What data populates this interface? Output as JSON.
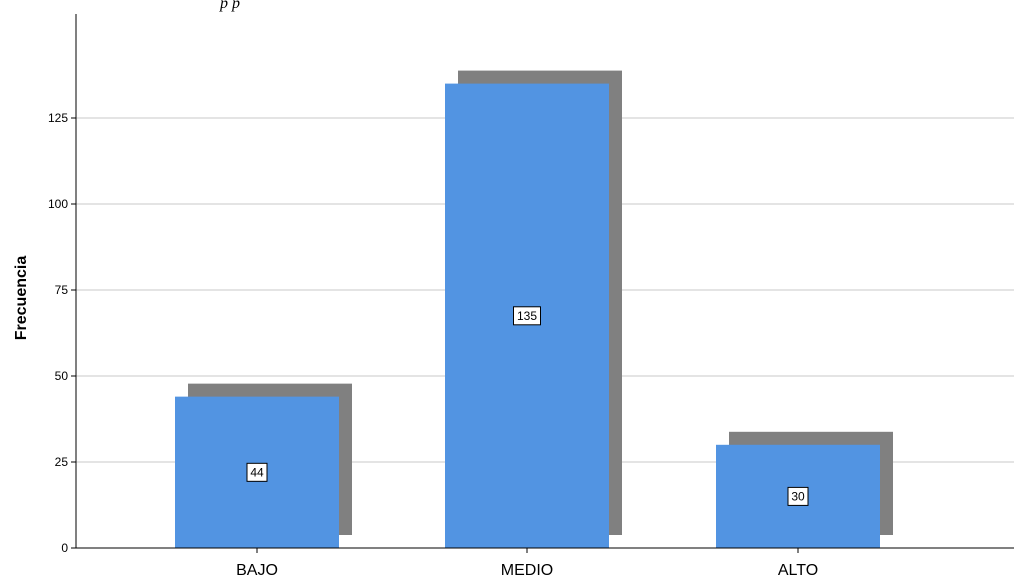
{
  "header": {
    "partial_text": "p  p"
  },
  "chart_data": {
    "type": "bar",
    "categories": [
      "BAJO",
      "MEDIO",
      "ALTO"
    ],
    "values": [
      44,
      135,
      30
    ],
    "data_labels": [
      "44",
      "135",
      "30"
    ],
    "ylabel": "Frecuencia",
    "xlabel": "",
    "ylim": [
      0,
      150
    ],
    "yticks": [
      0,
      25,
      50,
      75,
      100,
      125
    ],
    "grid": true,
    "bar_color": "#5294e2",
    "shadow_color": "#808080"
  }
}
